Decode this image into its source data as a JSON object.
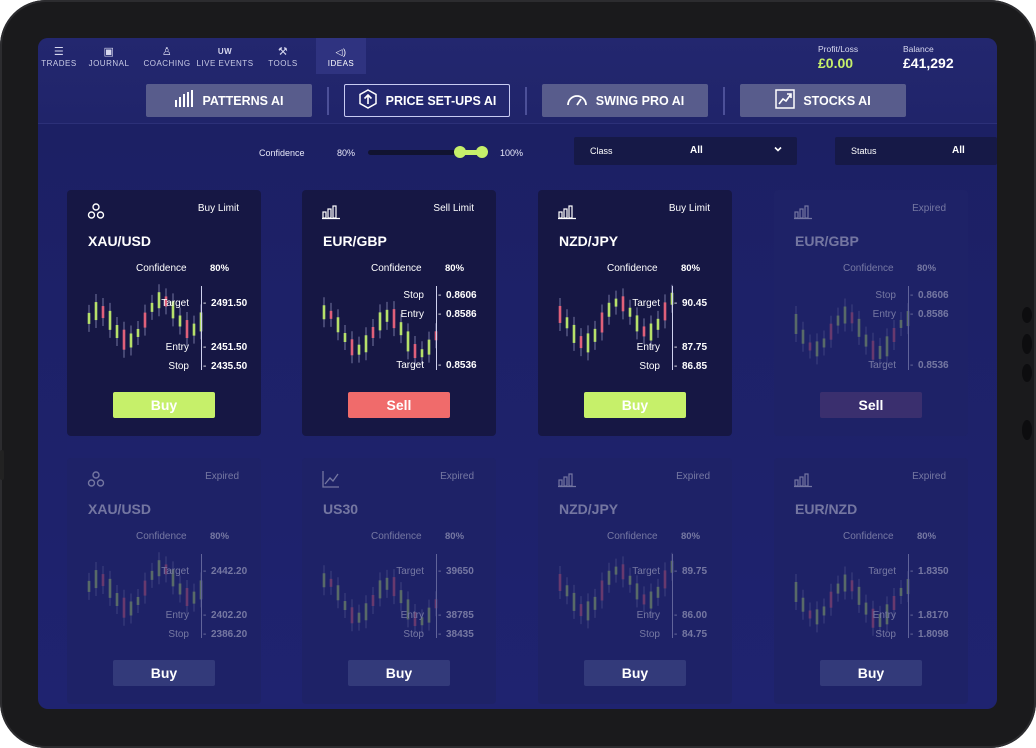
{
  "nav": {
    "items": [
      {
        "label": "TRADES",
        "icon": "list-icon",
        "glyph": "☰"
      },
      {
        "label": "JOURNAL",
        "icon": "journal-icon",
        "glyph": "▣"
      },
      {
        "label": "COACHING",
        "icon": "coaching-icon",
        "glyph": "♙"
      },
      {
        "label": "LIVE EVENTS",
        "icon": "uw-icon",
        "glyph": "UW"
      },
      {
        "label": "TOOLS",
        "icon": "tools-icon",
        "glyph": "⚒"
      },
      {
        "label": "IDEAS",
        "icon": "megaphone-icon",
        "glyph": "📢"
      }
    ]
  },
  "stats": {
    "profit_label": "Profit/Loss",
    "profit_value": "£0.00",
    "balance_label": "Balance",
    "balance_value": "£41,292"
  },
  "tabs": [
    {
      "label": "PATTERNS AI",
      "glyph": "▮▮▮"
    },
    {
      "label": "PRICE SET-UPS AI",
      "glyph": "⬆"
    },
    {
      "label": "SWING PRO AI",
      "glyph": "◠"
    },
    {
      "label": "STOCKS AI",
      "glyph": "↗"
    }
  ],
  "filters": {
    "confidence_label": "Confidence",
    "confidence_min": "80%",
    "confidence_max": "100%",
    "class_label": "Class",
    "class_value": "All",
    "status_label": "Status",
    "status_value": "All"
  },
  "colors": {
    "accent_green": "#c6f06a",
    "accent_red": "#f06b6b",
    "background": "#1d2168"
  },
  "cards": [
    {
      "type": "Buy Limit",
      "symbol": "XAU/USD",
      "confidence_label": "Confidence",
      "confidence": "80%",
      "levels": [
        {
          "label": "Target",
          "value": "2491.50"
        },
        {
          "label": "Entry",
          "value": "2451.50"
        },
        {
          "label": "Stop",
          "value": "2435.50"
        }
      ],
      "button": "Buy",
      "icon": "pattern-icon"
    },
    {
      "type": "Sell Limit",
      "symbol": "EUR/GBP",
      "confidence_label": "Confidence",
      "confidence": "80%",
      "levels": [
        {
          "label": "Stop",
          "value": "0.8606"
        },
        {
          "label": "Entry",
          "value": "0.8586"
        },
        {
          "label": "Target",
          "value": "0.8536"
        }
      ],
      "button": "Sell",
      "icon": "bar-chart-icon"
    },
    {
      "type": "Buy Limit",
      "symbol": "NZD/JPY",
      "confidence_label": "Confidence",
      "confidence": "80%",
      "levels": [
        {
          "label": "Target",
          "value": "90.45"
        },
        {
          "label": "Entry",
          "value": "87.75"
        },
        {
          "label": "Stop",
          "value": "86.85"
        }
      ],
      "button": "Buy",
      "icon": "bar-chart-icon"
    },
    {
      "type": "Expired",
      "symbol": "EUR/GBP",
      "confidence_label": "Confidence",
      "confidence": "80%",
      "levels": [
        {
          "label": "Stop",
          "value": "0.8606"
        },
        {
          "label": "Entry",
          "value": "0.8586"
        },
        {
          "label": "Target",
          "value": "0.8536"
        }
      ],
      "button": "Sell",
      "icon": "bar-chart-icon"
    },
    {
      "type": "Expired",
      "symbol": "XAU/USD",
      "confidence_label": "Confidence",
      "confidence": "80%",
      "levels": [
        {
          "label": "Target",
          "value": "2442.20"
        },
        {
          "label": "Entry",
          "value": "2402.20"
        },
        {
          "label": "Stop",
          "value": "2386.20"
        }
      ],
      "button": "Buy",
      "icon": "pattern-icon"
    },
    {
      "type": "Expired",
      "symbol": "US30",
      "confidence_label": "Confidence",
      "confidence": "80%",
      "levels": [
        {
          "label": "Target",
          "value": "39650"
        },
        {
          "label": "Entry",
          "value": "38785"
        },
        {
          "label": "Stop",
          "value": "38435"
        }
      ],
      "button": "Buy",
      "icon": "trend-icon"
    },
    {
      "type": "Expired",
      "symbol": "NZD/JPY",
      "confidence_label": "Confidence",
      "confidence": "80%",
      "levels": [
        {
          "label": "Target",
          "value": "89.75"
        },
        {
          "label": "Entry",
          "value": "86.00"
        },
        {
          "label": "Stop",
          "value": "84.75"
        }
      ],
      "button": "Buy",
      "icon": "bar-chart-icon"
    },
    {
      "type": "Expired",
      "symbol": "EUR/NZD",
      "confidence_label": "Confidence",
      "confidence": "80%",
      "levels": [
        {
          "label": "Target",
          "value": "1.8350"
        },
        {
          "label": "Entry",
          "value": "1.8170"
        },
        {
          "label": "Stop",
          "value": "1.8098"
        }
      ],
      "button": "Buy",
      "icon": "bar-chart-icon"
    }
  ]
}
